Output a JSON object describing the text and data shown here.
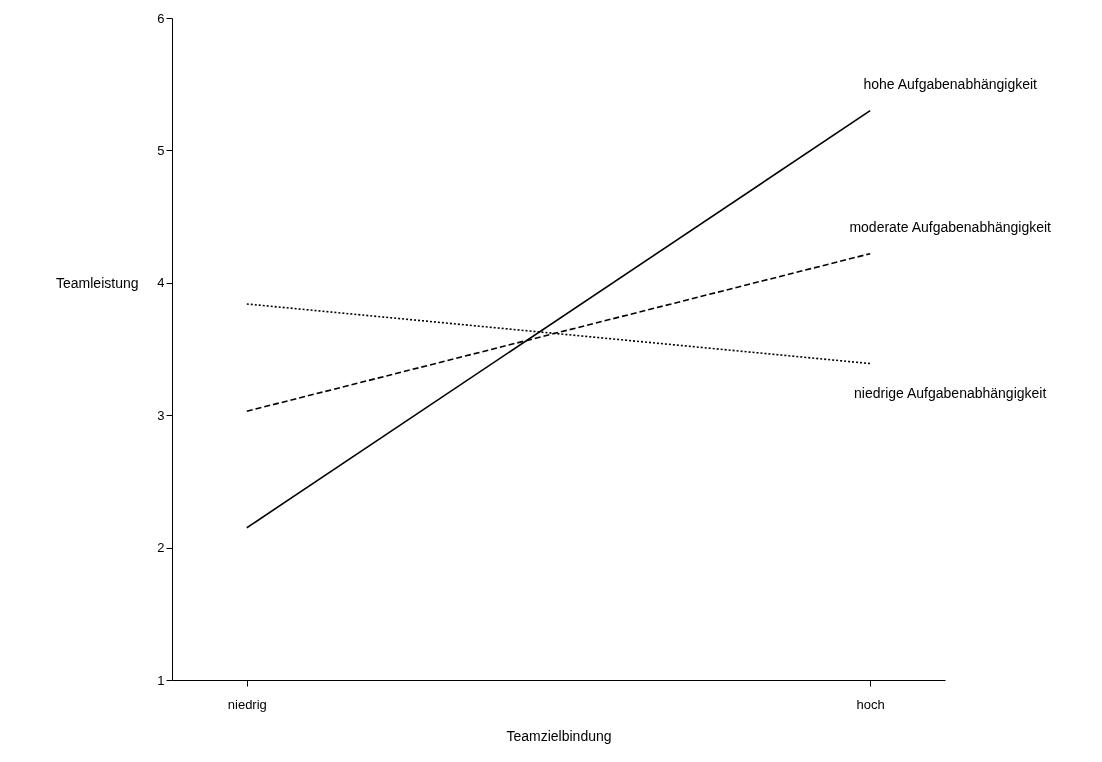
{
  "chart_data": {
    "type": "line",
    "xlabel": "Teamzielbindung",
    "ylabel": "Teamleistung",
    "categories": [
      "niedrig",
      "hoch"
    ],
    "ylim": [
      1,
      6
    ],
    "yticks": [
      1,
      2,
      3,
      4,
      5,
      6
    ],
    "marker": "none",
    "series": [
      {
        "name": "hohe Aufgabenabhängigkeit",
        "color": "#000000",
        "line_style": "solid",
        "values": [
          2.15,
          5.3
        ]
      },
      {
        "name": "moderate Aufgabenabhängigkeit",
        "color": "#000000",
        "line_style": "dashed",
        "values": [
          3.03,
          4.22
        ]
      },
      {
        "name": "niedrige Aufgabenabhängigkeit",
        "color": "#000000",
        "line_style": "dotted",
        "values": [
          3.84,
          3.39
        ]
      }
    ]
  }
}
